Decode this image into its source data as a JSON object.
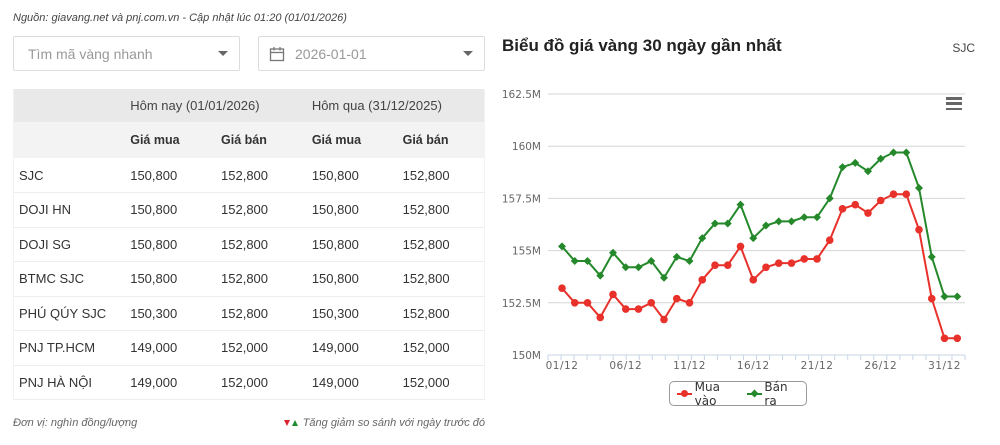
{
  "source_note": "Nguồn: giavang.net và pnj.com.vn - Cập nhật lúc 01:20 (01/01/2026)",
  "filters": {
    "search": {
      "placeholder": "Tìm mã vàng nhanh",
      "icon": "caret-down-icon"
    },
    "date": {
      "value": "2026-01-01",
      "icon": "calendar-icon"
    }
  },
  "table": {
    "group_headers": [
      "",
      "Hôm nay (01/01/2026)",
      "Hôm qua (31/12/2025)"
    ],
    "sub_headers": [
      "",
      "Giá mua",
      "Giá bán",
      "Giá mua",
      "Giá bán"
    ],
    "rows": [
      {
        "name": "SJC",
        "today_buy": "150,800",
        "today_sell": "152,800",
        "yesterday_buy": "150,800",
        "yesterday_sell": "152,800"
      },
      {
        "name": "DOJI HN",
        "today_buy": "150,800",
        "today_sell": "152,800",
        "yesterday_buy": "150,800",
        "yesterday_sell": "152,800"
      },
      {
        "name": "DOJI SG",
        "today_buy": "150,800",
        "today_sell": "152,800",
        "yesterday_buy": "150,800",
        "yesterday_sell": "152,800"
      },
      {
        "name": "BTMC SJC",
        "today_buy": "150,800",
        "today_sell": "152,800",
        "yesterday_buy": "150,800",
        "yesterday_sell": "152,800"
      },
      {
        "name": "PHÚ QÚY SJC",
        "today_buy": "150,300",
        "today_sell": "152,800",
        "yesterday_buy": "150,300",
        "yesterday_sell": "152,800"
      },
      {
        "name": "PNJ TP.HCM",
        "today_buy": "149,000",
        "today_sell": "152,000",
        "yesterday_buy": "149,000",
        "yesterday_sell": "152,000"
      },
      {
        "name": "PNJ HÀ NỘI",
        "today_buy": "149,000",
        "today_sell": "152,000",
        "yesterday_buy": "149,000",
        "yesterday_sell": "152,000"
      }
    ]
  },
  "footer": {
    "unit": "Đơn vị: nghìn đồng/lượng",
    "change_note": "Tăng giảm so sánh với ngày trước đó",
    "colors": {
      "down": "#d9232e",
      "up": "#1e8b2e"
    }
  },
  "chart": {
    "brand": "SJC",
    "menu_icon": "hamburger-menu-icon"
  },
  "chart_data": {
    "type": "line",
    "title": "Biểu đồ giá vàng 30 ngày gần nhất",
    "subtitle": "SJC",
    "xlabel": "",
    "ylabel": "",
    "ylim": [
      150,
      162.5
    ],
    "y_unit": "M",
    "y_ticks": [
      "150M",
      "152.5M",
      "155M",
      "157.5M",
      "160M",
      "162.5M"
    ],
    "x_tick_labels": [
      "01/12",
      "06/12",
      "11/12",
      "16/12",
      "21/12",
      "26/12",
      "31/12"
    ],
    "grid": true,
    "legend_position": "bottom-center",
    "x": [
      "01/12",
      "02/12",
      "03/12",
      "04/12",
      "05/12",
      "06/12",
      "07/12",
      "08/12",
      "09/12",
      "10/12",
      "11/12",
      "12/12",
      "13/12",
      "14/12",
      "15/12",
      "16/12",
      "17/12",
      "18/12",
      "19/12",
      "20/12",
      "21/12",
      "22/12",
      "23/12",
      "24/12",
      "25/12",
      "26/12",
      "27/12",
      "28/12",
      "29/12",
      "30/12",
      "31/12",
      "01/01"
    ],
    "series": [
      {
        "name": "Mua vào",
        "color": "#e8312b",
        "marker": "circle",
        "values": [
          153.2,
          152.5,
          152.5,
          151.8,
          152.9,
          152.2,
          152.2,
          152.5,
          151.7,
          152.7,
          152.5,
          153.6,
          154.3,
          154.3,
          155.2,
          153.6,
          154.2,
          154.4,
          154.4,
          154.6,
          154.6,
          155.5,
          157.0,
          157.2,
          156.8,
          157.4,
          157.7,
          157.7,
          156.0,
          152.7,
          150.8,
          150.8
        ]
      },
      {
        "name": "Bán ra",
        "color": "#25892b",
        "marker": "diamond",
        "values": [
          155.2,
          154.5,
          154.5,
          153.8,
          154.9,
          154.2,
          154.2,
          154.5,
          153.7,
          154.7,
          154.5,
          155.6,
          156.3,
          156.3,
          157.2,
          155.6,
          156.2,
          156.4,
          156.4,
          156.6,
          156.6,
          157.5,
          159.0,
          159.2,
          158.8,
          159.4,
          159.7,
          159.7,
          158.0,
          154.7,
          152.8,
          152.8
        ]
      }
    ]
  }
}
